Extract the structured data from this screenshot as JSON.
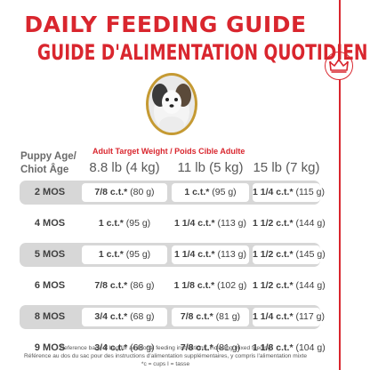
{
  "title_line1": "DAILY FEEDING GUIDE",
  "title_line2": "GUIDE D'ALIMENTATION QUOTIDIEN",
  "puppy_age_header": "Puppy Age/",
  "chiot_age_header": "Chiot Âge",
  "adult_weight_header": "Adult Target Weight / Poids Cible Adulte",
  "weights": [
    "8.8 lb (4 kg)",
    "11 lb (5 kg)",
    "15 lb (7 kg)"
  ],
  "rows": [
    {
      "age": "2 MOS",
      "cells": [
        [
          "7/8 c.t.*",
          " (80 g)"
        ],
        [
          "1 c.t.*",
          " (95 g)"
        ],
        [
          "1 1/4 c.t.*",
          " (115 g)"
        ]
      ]
    },
    {
      "age": "4 MOS",
      "cells": [
        [
          "1 c.t.*",
          " (95 g)"
        ],
        [
          "1 1/4 c.t.*",
          " (113 g)"
        ],
        [
          "1 1/2 c.t.*",
          " (144 g)"
        ]
      ]
    },
    {
      "age": "5 MOS",
      "cells": [
        [
          "1 c.t.*",
          " (95 g)"
        ],
        [
          "1 1/4 c.t.*",
          " (113 g)"
        ],
        [
          "1 1/2 c.t.*",
          " (145 g)"
        ]
      ]
    },
    {
      "age": "6 MOS",
      "cells": [
        [
          "7/8 c.t.*",
          " (86 g)"
        ],
        [
          "1 1/8 c.t.*",
          " (102 g)"
        ],
        [
          "1 1/2 c.t.*",
          " (144 g)"
        ]
      ]
    },
    {
      "age": "8 MOS",
      "cells": [
        [
          "3/4 c.t.*",
          " (68 g)"
        ],
        [
          "7/8 c.t.*",
          " (81 g)"
        ],
        [
          "1 1/4 c.t.*",
          " (117 g)"
        ]
      ]
    },
    {
      "age": "9 MOS",
      "cells": [
        [
          "3/4 c.t.*",
          " (68 g)"
        ],
        [
          "7/8 c.t.*",
          " (81 g)"
        ],
        [
          "1 1/8 c.t.*",
          " (104 g)"
        ]
      ]
    }
  ],
  "footnote1": "Reference back of bag for additional feeding instructions, including mixed feeding",
  "footnote2": "Référence au dos du sac pour des instructions d'alimentation supplémentaires, y compris l'alimentation mixte",
  "footnote3": "*c = cups I = tasse",
  "colors": {
    "brand_red": "#d9262e",
    "row_shade": "#d7d7d7",
    "puppy_ring": "#c59a33"
  },
  "icons": {
    "logo": "royal-crown-icon"
  }
}
